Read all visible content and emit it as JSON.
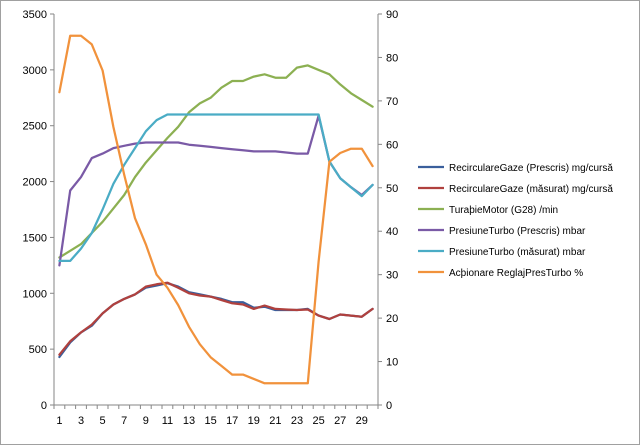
{
  "chart_data": {
    "type": "line",
    "title": "",
    "xlabel": "",
    "ylabel": "",
    "x": [
      1,
      2,
      3,
      4,
      5,
      6,
      7,
      8,
      9,
      10,
      11,
      12,
      13,
      14,
      15,
      16,
      17,
      18,
      19,
      20,
      21,
      22,
      23,
      24,
      25,
      26,
      27,
      28,
      29,
      30
    ],
    "x_tick_labels": [
      "1",
      "3",
      "5",
      "7",
      "9",
      "11",
      "13",
      "15",
      "17",
      "19",
      "21",
      "23",
      "25",
      "27",
      "29"
    ],
    "y_left": {
      "lim": [
        0,
        3500
      ],
      "ticks": [
        "0",
        "500",
        "1000",
        "1500",
        "2000",
        "2500",
        "3000",
        "3500"
      ]
    },
    "y_right": {
      "lim": [
        0,
        90
      ],
      "ticks": [
        "0",
        "10",
        "20",
        "30",
        "40",
        "50",
        "60",
        "70",
        "80",
        "90"
      ]
    },
    "legend_position": "right",
    "grid": "none",
    "series": [
      {
        "name": "RecirculareGaze (Prescris)  mg/cursă",
        "axis": "left",
        "color": "#3a5f9c",
        "values": [
          430,
          560,
          650,
          710,
          820,
          900,
          950,
          990,
          1050,
          1070,
          1090,
          1060,
          1010,
          990,
          970,
          950,
          920,
          920,
          870,
          880,
          850,
          850,
          850,
          860,
          800,
          770,
          810,
          800,
          790,
          860
        ]
      },
      {
        "name": "RecirculareGaze (măsurat)  mg/cursă",
        "axis": "left",
        "color": "#b0413e",
        "values": [
          450,
          570,
          650,
          720,
          820,
          900,
          950,
          990,
          1060,
          1080,
          1095,
          1050,
          1000,
          980,
          970,
          940,
          910,
          900,
          860,
          890,
          860,
          855,
          850,
          855,
          800,
          770,
          810,
          800,
          790,
          860
        ]
      },
      {
        "name": "TuraþieMotor (G28)  /min",
        "axis": "left",
        "color": "#8cb052",
        "values": [
          1320,
          1380,
          1440,
          1540,
          1640,
          1760,
          1880,
          2040,
          2170,
          2280,
          2390,
          2490,
          2620,
          2700,
          2750,
          2840,
          2900,
          2900,
          2940,
          2960,
          2930,
          2930,
          3020,
          3040,
          3000,
          2960,
          2870,
          2790,
          2730,
          2670
        ]
      },
      {
        "name": "PresiuneTurbo (Prescris)  mbar",
        "axis": "left",
        "color": "#7a5aa6",
        "values": [
          1250,
          1920,
          2040,
          2210,
          2250,
          2300,
          2320,
          2340,
          2350,
          2350,
          2350,
          2350,
          2330,
          2320,
          2310,
          2300,
          2290,
          2280,
          2270,
          2270,
          2270,
          2260,
          2250,
          2250,
          2590,
          2180,
          2030,
          1950,
          1880,
          1970
        ]
      },
      {
        "name": "PresiuneTurbo (măsurat)  mbar",
        "axis": "left",
        "color": "#4aacc5",
        "values": [
          1290,
          1290,
          1400,
          1540,
          1750,
          1980,
          2150,
          2300,
          2450,
          2550,
          2600,
          2600,
          2600,
          2600,
          2600,
          2600,
          2600,
          2600,
          2600,
          2600,
          2600,
          2600,
          2600,
          2600,
          2600,
          2180,
          2030,
          1950,
          1870,
          1970
        ]
      },
      {
        "name": "Acþionare ReglajPresTurbo  %",
        "axis": "right",
        "color": "#f1923c",
        "values": [
          72,
          85,
          85,
          83,
          77,
          64,
          53,
          43,
          37,
          30,
          27,
          23,
          18,
          14,
          11,
          9,
          7,
          7,
          6,
          5,
          5,
          5,
          5,
          5,
          33,
          56,
          58,
          59,
          59,
          55
        ]
      }
    ]
  }
}
